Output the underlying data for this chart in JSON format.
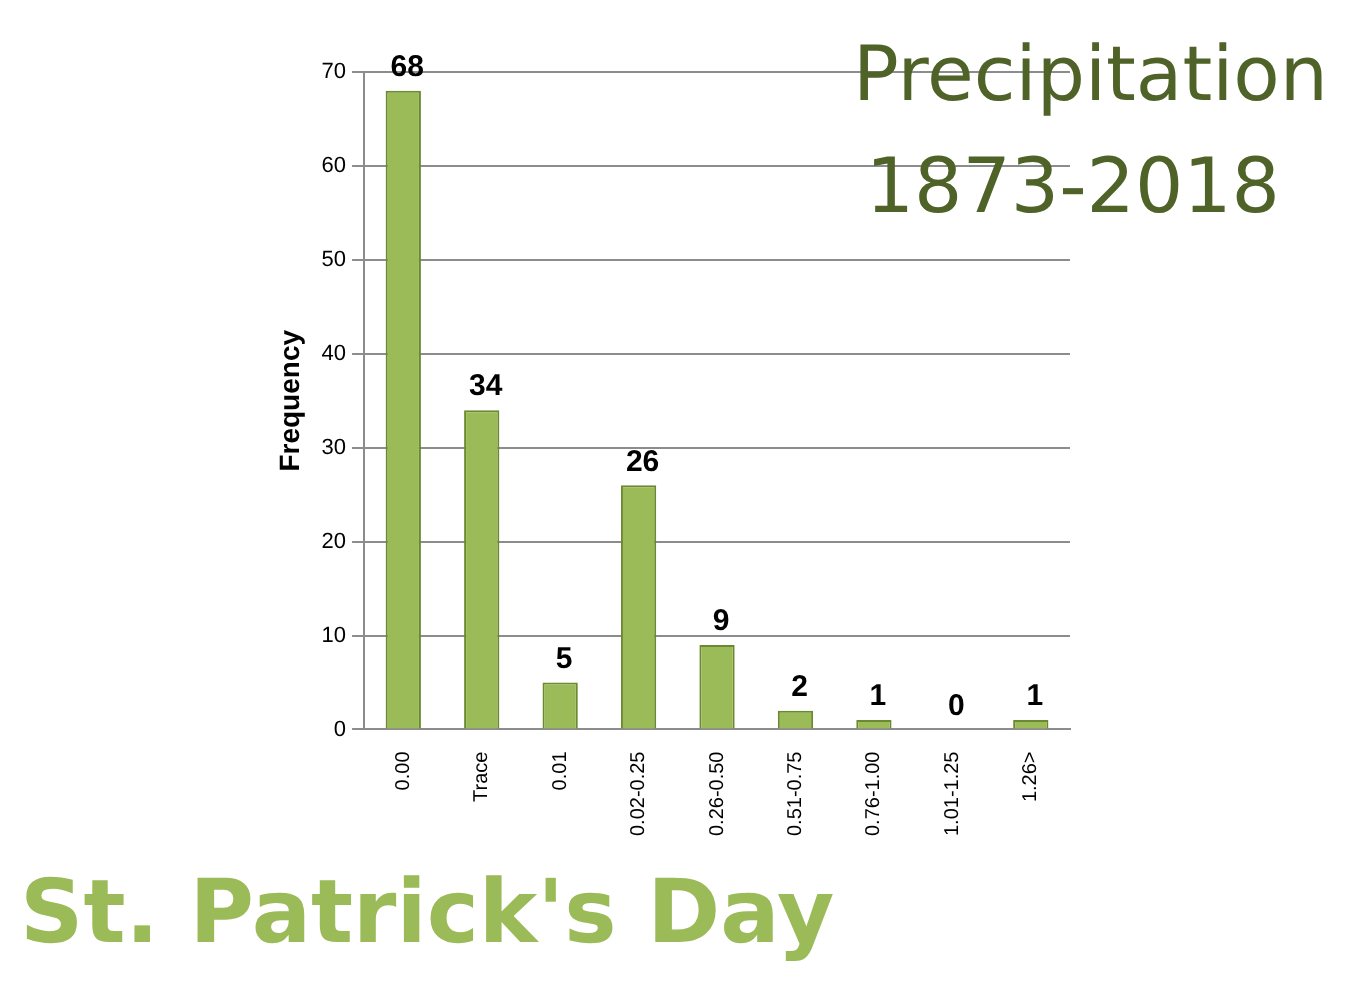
{
  "chart_data": {
    "type": "bar",
    "title": "Precipitation",
    "subtitle": "1873-2018",
    "ylabel": "Frequency",
    "categories": [
      "0.00",
      "Trace",
      "0.01",
      "0.02-0.25",
      "0.26-0.50",
      "0.51-0.75",
      "0.76-1.00",
      "1.01-1.25",
      "1.26>"
    ],
    "values": [
      68,
      34,
      5,
      26,
      9,
      2,
      1,
      0,
      1
    ],
    "color": "#9bbb59",
    "ylim": [
      0,
      70
    ],
    "yticks": [
      0,
      10,
      20,
      30,
      40,
      50,
      60,
      70
    ],
    "grid": "y",
    "data_labels": true,
    "annotations": [
      "St. Patrick's Day"
    ]
  }
}
